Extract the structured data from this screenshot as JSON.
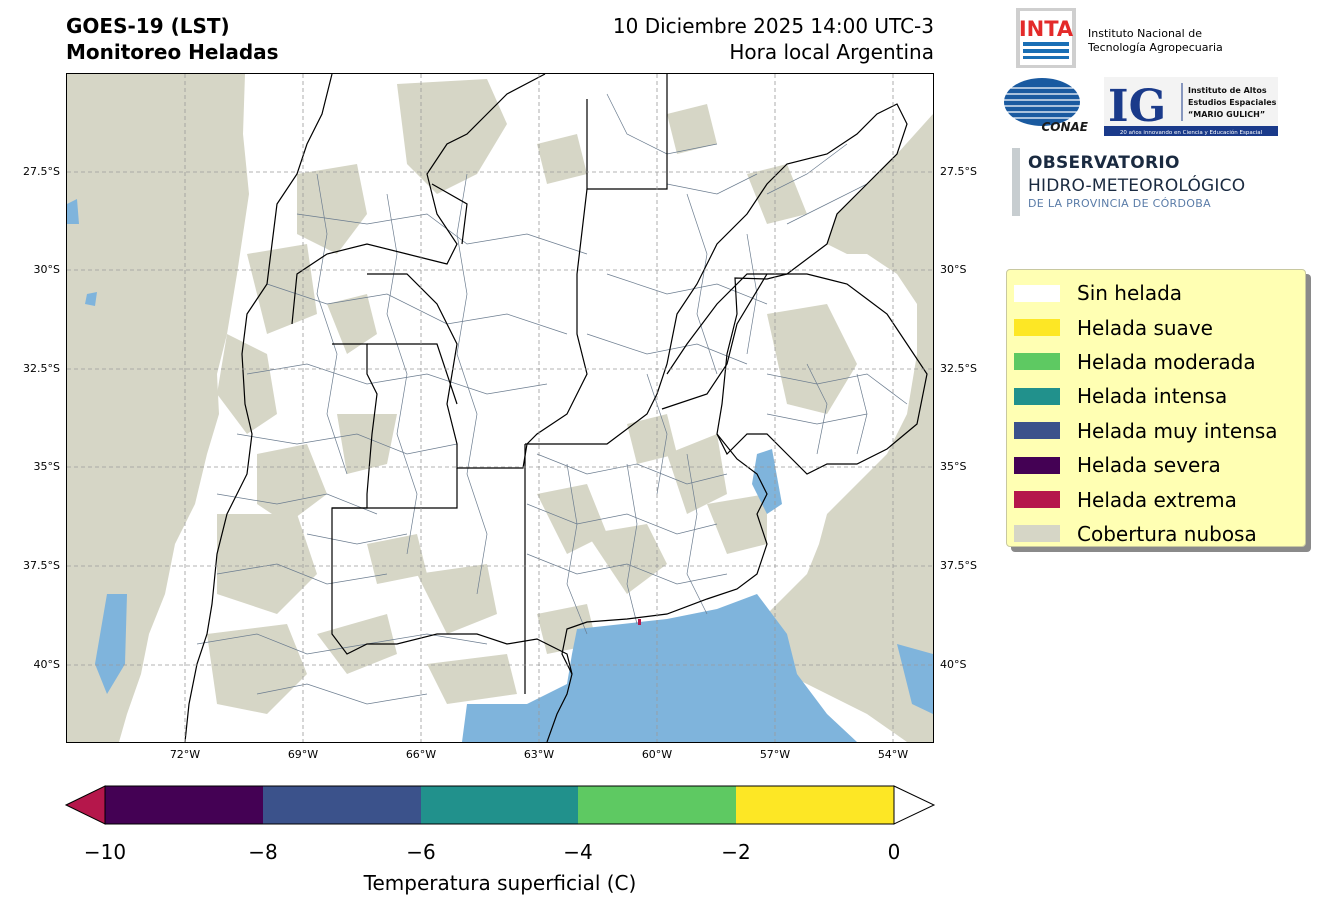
{
  "header": {
    "title_line1": "GOES-19 (LST)",
    "title_line2": "Monitoreo Heladas",
    "datetime": "10 Diciembre 2025 14:00 UTC-3",
    "timezone_note": "Hora local Argentina"
  },
  "logos": {
    "inta_mark": "INTA",
    "inta_name_line1": "Instituto Nacional de",
    "inta_name_line2": "Tecnología Agropecuaria",
    "conae_mark": "CONAE",
    "ig_mark": "IG",
    "ig_line1": "Instituto de Altos",
    "ig_line2": "Estudios Espaciales",
    "ig_line3": "“MARIO GULICH”",
    "ig_tagline": "20 años innovando en Ciencia y Educación Espacial",
    "obs_line1": "OBSERVATORIO",
    "obs_line2": "HIDRO-METEOROLÓGICO",
    "obs_line3": "DE LA PROVINCIA DE CÓRDOBA"
  },
  "map": {
    "lat_ticks": [
      "27.5°S",
      "30°S",
      "32.5°S",
      "35°S",
      "37.5°S",
      "40°S"
    ],
    "lon_ticks": [
      "72°W",
      "69°W",
      "66°W",
      "63°W",
      "60°W",
      "57°W",
      "54°W"
    ],
    "colors": {
      "cloud": "#d6d6c6",
      "water": "#7fb4dc",
      "land": "#ffffff",
      "borders": "#000000",
      "departments": "#6b7c8f"
    }
  },
  "legend": {
    "items": [
      {
        "label": "Sin helada",
        "color": "#ffffff"
      },
      {
        "label": "Helada suave",
        "color": "#fde725"
      },
      {
        "label": "Helada moderada",
        "color": "#5ec962"
      },
      {
        "label": "Helada intensa",
        "color": "#21918c"
      },
      {
        "label": "Helada muy intensa",
        "color": "#3b528b"
      },
      {
        "label": "Helada severa",
        "color": "#440154"
      },
      {
        "label": "Helada extrema",
        "color": "#b5174b"
      },
      {
        "label": "Cobertura nubosa",
        "color": "#d6d6c6"
      }
    ]
  },
  "colorbar": {
    "ticks": [
      "−10",
      "−8",
      "−6",
      "−4",
      "−2",
      "0"
    ],
    "label": "Temperatura superficial (C)",
    "below_color": "#b5174b",
    "above_color": "#ffffff",
    "segments": [
      "#440154",
      "#3b528b",
      "#21918c",
      "#5ec962",
      "#fde725"
    ]
  }
}
